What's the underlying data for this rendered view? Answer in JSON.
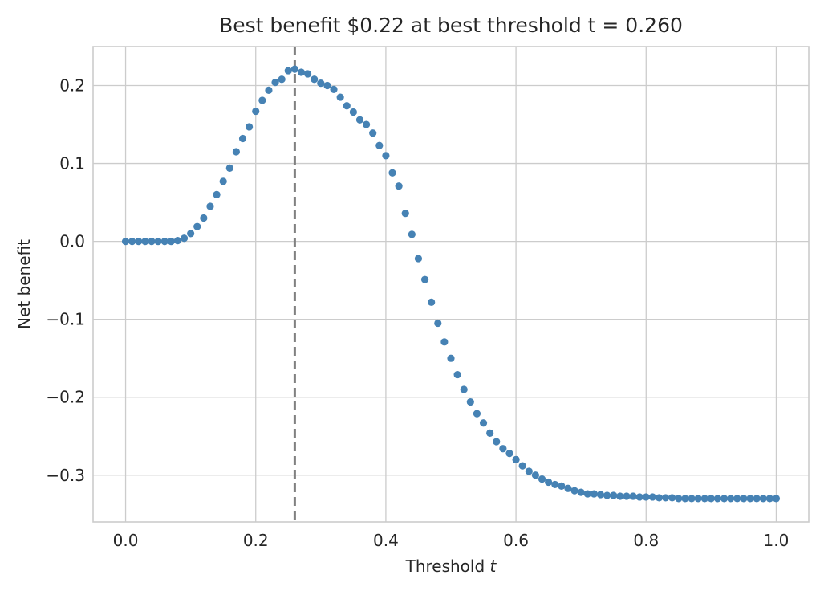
{
  "chart_data": {
    "type": "scatter",
    "title": "Best benefit $0.22 at best threshold t = 0.260",
    "xlabel": "Threshold t",
    "ylabel": "Net benefit",
    "xlim": [
      -0.05,
      1.05
    ],
    "ylim": [
      -0.36,
      0.25
    ],
    "xticks": [
      0.0,
      0.2,
      0.4,
      0.6,
      0.8,
      1.0
    ],
    "xtick_labels": [
      "0.0",
      "0.2",
      "0.4",
      "0.6",
      "0.8",
      "1.0"
    ],
    "yticks": [
      0.2,
      0.1,
      0.0,
      -0.1,
      -0.2,
      -0.3
    ],
    "ytick_labels": [
      "0.2",
      "0.1",
      "0.0",
      "−0.1",
      "−0.2",
      "−0.3"
    ],
    "grid": true,
    "best_threshold": 0.26,
    "best_benefit": 0.22,
    "series": [
      {
        "color": "#4682b4",
        "x": [
          0.0,
          0.01,
          0.02,
          0.03,
          0.04,
          0.05,
          0.06,
          0.07,
          0.08,
          0.09,
          0.1,
          0.11,
          0.12,
          0.13,
          0.14,
          0.15,
          0.16,
          0.17,
          0.18,
          0.19,
          0.2,
          0.21,
          0.22,
          0.23,
          0.24,
          0.25,
          0.26,
          0.27,
          0.28,
          0.29,
          0.3,
          0.31,
          0.32,
          0.33,
          0.34,
          0.35,
          0.36,
          0.37,
          0.38,
          0.39,
          0.4,
          0.41,
          0.42,
          0.43,
          0.44,
          0.45,
          0.46,
          0.47,
          0.48,
          0.49,
          0.5,
          0.51,
          0.52,
          0.53,
          0.54,
          0.55,
          0.56,
          0.57,
          0.58,
          0.59,
          0.6,
          0.61,
          0.62,
          0.63,
          0.64,
          0.65,
          0.66,
          0.67,
          0.68,
          0.69,
          0.7,
          0.71,
          0.72,
          0.73,
          0.74,
          0.75,
          0.76,
          0.77,
          0.78,
          0.79,
          0.8,
          0.81,
          0.82,
          0.83,
          0.84,
          0.85,
          0.86,
          0.87,
          0.88,
          0.89,
          0.9,
          0.91,
          0.92,
          0.93,
          0.94,
          0.95,
          0.96,
          0.97,
          0.98,
          0.99,
          1.0
        ],
        "y": [
          0.0,
          0.0,
          0.0,
          0.0,
          0.0,
          0.0,
          0.0,
          0.0,
          0.001,
          0.004,
          0.01,
          0.019,
          0.03,
          0.045,
          0.06,
          0.077,
          0.094,
          0.115,
          0.132,
          0.147,
          0.167,
          0.181,
          0.194,
          0.204,
          0.208,
          0.219,
          0.221,
          0.217,
          0.215,
          0.208,
          0.203,
          0.2,
          0.195,
          0.185,
          0.174,
          0.166,
          0.156,
          0.15,
          0.139,
          0.123,
          0.11,
          0.088,
          0.071,
          0.036,
          0.009,
          -0.022,
          -0.049,
          -0.078,
          -0.105,
          -0.129,
          -0.15,
          -0.171,
          -0.19,
          -0.206,
          -0.221,
          -0.233,
          -0.246,
          -0.257,
          -0.266,
          -0.272,
          -0.28,
          -0.288,
          -0.295,
          -0.3,
          -0.305,
          -0.309,
          -0.312,
          -0.314,
          -0.317,
          -0.32,
          -0.322,
          -0.324,
          -0.324,
          -0.325,
          -0.326,
          -0.326,
          -0.327,
          -0.327,
          -0.327,
          -0.328,
          -0.328,
          -0.328,
          -0.329,
          -0.329,
          -0.329,
          -0.33,
          -0.33,
          -0.33,
          -0.33,
          -0.33,
          -0.33,
          -0.33,
          -0.33,
          -0.33,
          -0.33,
          -0.33,
          -0.33,
          -0.33,
          -0.33,
          -0.33,
          -0.33
        ]
      }
    ]
  }
}
